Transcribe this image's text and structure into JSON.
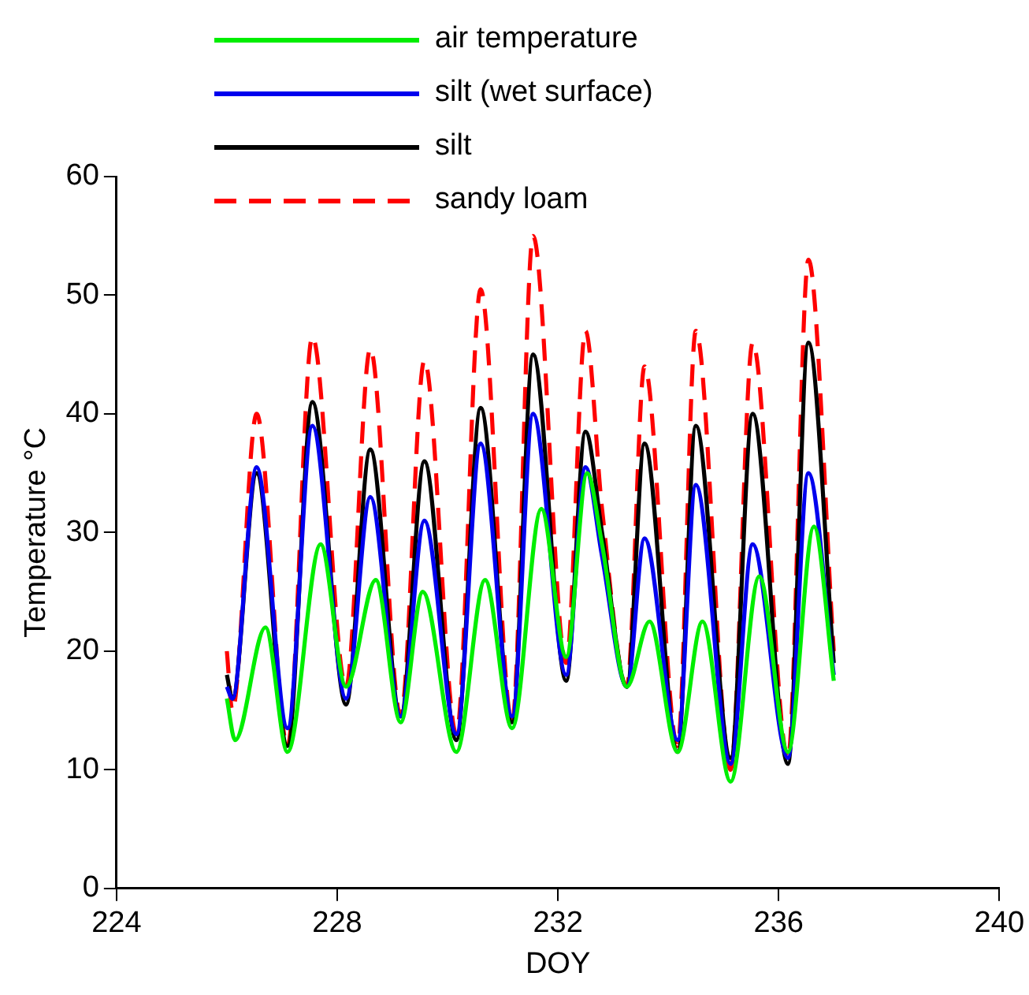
{
  "chart_data": {
    "type": "line",
    "xlabel": "DOY",
    "ylabel": "Temperature °C",
    "xlim": [
      224,
      240
    ],
    "xticks": [
      224,
      228,
      232,
      236,
      240
    ],
    "ylim": [
      0,
      60
    ],
    "yticks": [
      0,
      10,
      20,
      30,
      40,
      50,
      60
    ],
    "grid": false,
    "legend": "top",
    "marker": "none",
    "series": [
      {
        "name": "air temperature",
        "color": "#00ee00",
        "line_style": "solid",
        "x": [
          226.0,
          226.15,
          226.7,
          227.1,
          227.7,
          228.16,
          228.7,
          229.15,
          229.55,
          230.16,
          230.68,
          231.17,
          231.7,
          232.15,
          232.53,
          232.8,
          233.25,
          233.66,
          234.17,
          234.62,
          235.13,
          235.65,
          236.17,
          236.64,
          237.0
        ],
        "values": [
          16,
          12.5,
          22,
          11.5,
          29,
          17,
          26,
          14,
          25,
          11.5,
          26,
          13.5,
          32,
          19.5,
          35,
          29,
          17,
          22.5,
          11.5,
          22.5,
          9,
          26.3,
          11.5,
          30.5,
          17.5
        ]
      },
      {
        "name": "silt (wet surface)",
        "color": "#0000ee",
        "line_style": "solid",
        "x": [
          226.0,
          226.1,
          226.54,
          227.1,
          227.55,
          228.16,
          228.6,
          229.15,
          229.58,
          230.16,
          230.6,
          231.17,
          231.55,
          232.15,
          232.5,
          232.8,
          233.25,
          233.57,
          234.17,
          234.5,
          235.13,
          235.53,
          236.17,
          236.54,
          237.0
        ],
        "values": [
          17,
          16,
          35.5,
          13.5,
          39,
          16,
          33,
          14.5,
          31,
          13,
          37.5,
          14.5,
          40,
          18,
          35.5,
          28,
          17,
          29.5,
          12.5,
          34,
          10.5,
          29,
          11,
          35,
          18
        ]
      },
      {
        "name": "silt",
        "color": "#000000",
        "line_style": "solid",
        "x": [
          226.0,
          226.1,
          226.54,
          227.1,
          227.55,
          228.16,
          228.6,
          229.15,
          229.58,
          230.16,
          230.6,
          231.17,
          231.55,
          232.15,
          232.5,
          232.8,
          233.25,
          233.57,
          234.17,
          234.5,
          235.13,
          235.53,
          236.17,
          236.54,
          237.0
        ],
        "values": [
          18,
          16,
          35,
          12,
          41,
          15.5,
          37,
          14.5,
          36,
          12.5,
          40.5,
          14,
          45,
          17.5,
          38.5,
          30,
          17,
          37.5,
          11.5,
          39,
          11,
          40,
          10.5,
          46,
          19
        ]
      },
      {
        "name": "sandy loam",
        "color": "#ff0000",
        "line_style": "dashed",
        "x": [
          226.0,
          226.1,
          226.54,
          227.1,
          227.55,
          228.16,
          228.6,
          229.15,
          229.58,
          230.16,
          230.6,
          231.17,
          231.55,
          232.15,
          232.5,
          232.8,
          233.25,
          233.57,
          234.17,
          234.5,
          235.13,
          235.53,
          236.17,
          236.54,
          237.0
        ],
        "values": [
          20,
          15,
          40,
          12,
          46.5,
          17,
          45.5,
          14.5,
          44.5,
          13,
          50.5,
          14,
          55,
          19,
          47,
          32,
          17,
          44,
          12,
          47,
          10,
          46,
          11,
          53,
          20
        ]
      }
    ]
  }
}
